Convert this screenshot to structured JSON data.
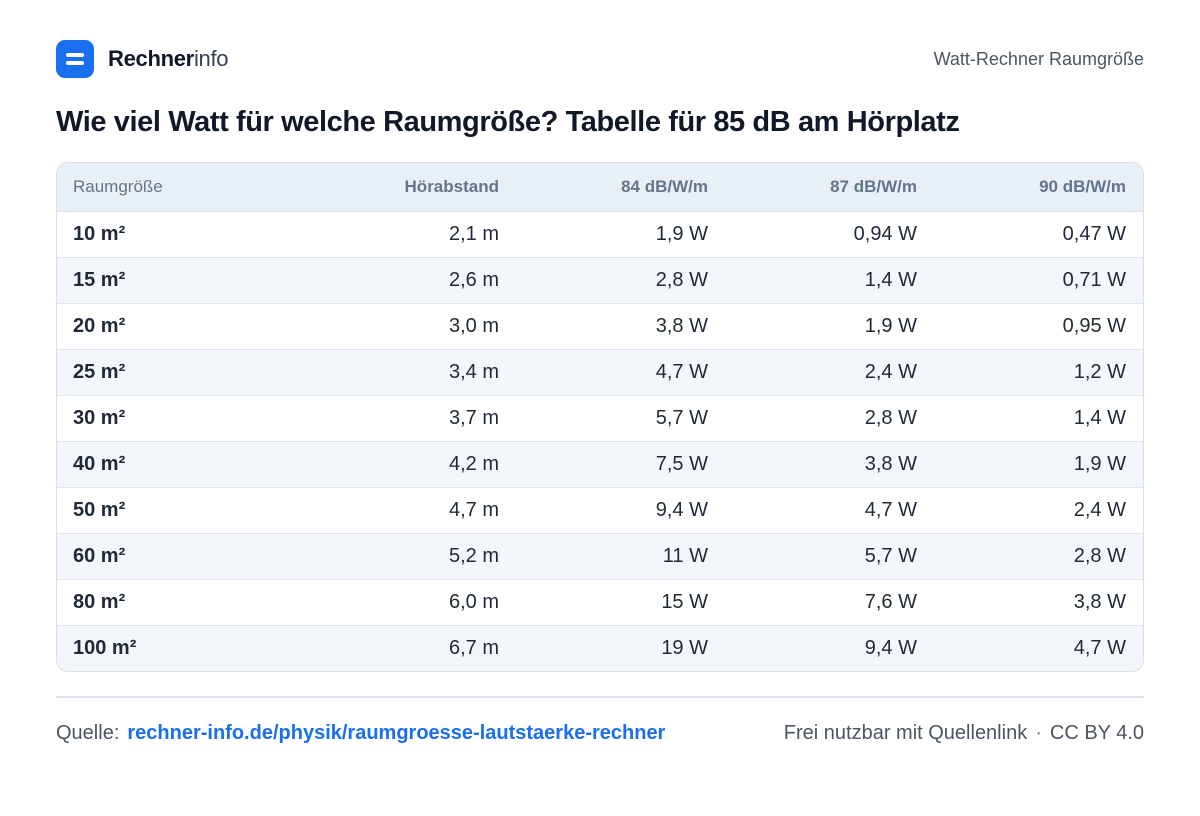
{
  "brand": {
    "name_strong": "Rechner",
    "name_light": "info"
  },
  "header": {
    "right_label": "Watt-Rechner Raumgröße"
  },
  "page_title": "Wie viel Watt für welche Raumgröße? Tabelle für 85 dB am Hörplatz",
  "table": {
    "columns": [
      "Raumgröße",
      "Hörabstand",
      "84 dB/W/m",
      "87 dB/W/m",
      "90 dB/W/m"
    ],
    "rows": [
      [
        "10 m²",
        "2,1 m",
        "1,9 W",
        "0,94 W",
        "0,47 W"
      ],
      [
        "15 m²",
        "2,6 m",
        "2,8 W",
        "1,4 W",
        "0,71 W"
      ],
      [
        "20 m²",
        "3,0 m",
        "3,8 W",
        "1,9 W",
        "0,95 W"
      ],
      [
        "25 m²",
        "3,4 m",
        "4,7 W",
        "2,4 W",
        "1,2 W"
      ],
      [
        "30 m²",
        "3,7 m",
        "5,7 W",
        "2,8 W",
        "1,4 W"
      ],
      [
        "40 m²",
        "4,2 m",
        "7,5 W",
        "3,8 W",
        "1,9 W"
      ],
      [
        "50 m²",
        "4,7 m",
        "9,4 W",
        "4,7 W",
        "2,4 W"
      ],
      [
        "60 m²",
        "5,2 m",
        "11 W",
        "5,7 W",
        "2,8 W"
      ],
      [
        "80 m²",
        "6,0 m",
        "15 W",
        "7,6 W",
        "3,8 W"
      ],
      [
        "100 m²",
        "6,7 m",
        "19 W",
        "9,4 W",
        "4,7 W"
      ]
    ]
  },
  "footer": {
    "source_label": "Quelle:",
    "source_link": "rechner-info.de/physik/raumgroesse-lautstaerke-rechner",
    "usage_note": "Frei nutzbar mit Quellenlink",
    "separator": "·",
    "license": "CC BY 4.0"
  },
  "colors": {
    "accent": "#1a6ff0",
    "header_bg": "#e9eff7",
    "alt_row_bg": "#f3f6fb"
  }
}
